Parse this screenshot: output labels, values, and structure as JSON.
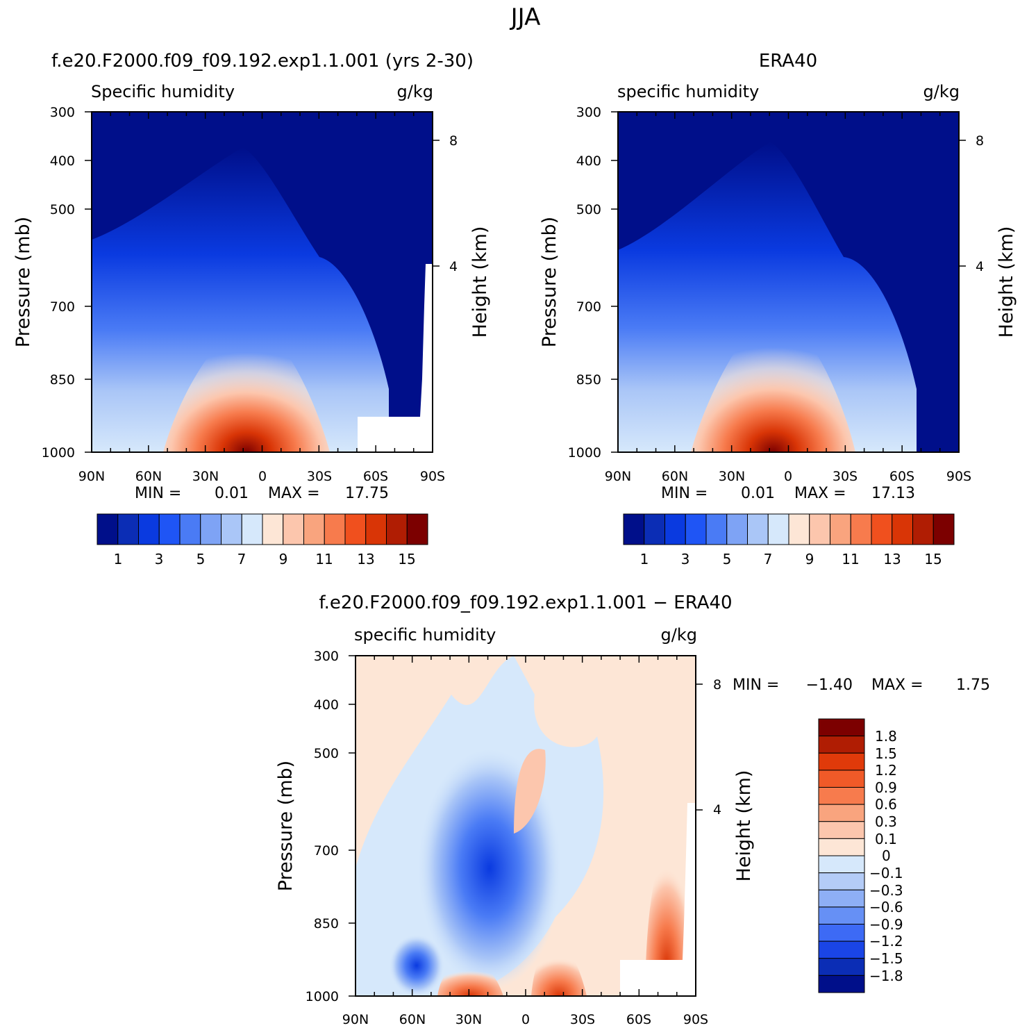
{
  "page_title": "JJA",
  "chart_data": [
    {
      "type": "heatmap",
      "panel_title": "f.e20.F2000.f09_f09.192.exp1.1.001 (yrs 2-30)",
      "left_label": "Specific humidity",
      "right_label": "g/kg",
      "xlabel": "",
      "ylabel": "Pressure (mb)",
      "y2label": "Height (km)",
      "x_ticks": [
        "90N",
        "60N",
        "30N",
        "0",
        "30S",
        "60S",
        "90S"
      ],
      "y_ticks": [
        "300",
        "400",
        "500",
        "700",
        "850",
        "1000"
      ],
      "y2_ticks": [
        "8",
        "4"
      ],
      "stats": {
        "min_label": "MIN =",
        "min": "0.01",
        "max_label": "MAX =",
        "max": "17.75"
      },
      "colorbar_labels": [
        "1",
        "3",
        "5",
        "7",
        "9",
        "11",
        "13",
        "15"
      ],
      "note": "zonal-mean humidity decreasing with height; maximum near the surface just north of the equator"
    },
    {
      "type": "heatmap",
      "panel_title": "ERA40",
      "left_label": "specific humidity",
      "right_label": "g/kg",
      "xlabel": "",
      "ylabel": "Pressure (mb)",
      "y2label": "Height (km)",
      "x_ticks": [
        "90N",
        "60N",
        "30N",
        "0",
        "30S",
        "60S",
        "90S"
      ],
      "y_ticks": [
        "300",
        "400",
        "500",
        "700",
        "850",
        "1000"
      ],
      "y2_ticks": [
        "8",
        "4"
      ],
      "stats": {
        "min_label": "MIN =",
        "min": "0.01",
        "max_label": "MAX =",
        "max": "17.13"
      },
      "colorbar_labels": [
        "1",
        "3",
        "5",
        "7",
        "9",
        "11",
        "13",
        "15"
      ]
    },
    {
      "type": "heatmap",
      "panel_title": "f.e20.F2000.f09_f09.192.exp1.1.001 − ERA40",
      "left_label": "specific humidity",
      "right_label": "g/kg",
      "xlabel": "",
      "ylabel": "Pressure (mb)",
      "y2label": "Height (km)",
      "x_ticks": [
        "90N",
        "60N",
        "30N",
        "0",
        "30S",
        "60S",
        "90S"
      ],
      "y_ticks": [
        "300",
        "400",
        "500",
        "700",
        "850",
        "1000"
      ],
      "y2_ticks": [
        "8",
        "4"
      ],
      "stats": {
        "min_label": "MIN =",
        "min": "−1.40",
        "max_label": "MAX =",
        "max": "1.75"
      },
      "colorbar_labels": [
        "1.8",
        "1.5",
        "1.2",
        "0.9",
        "0.6",
        "0.3",
        "0.1",
        "0",
        "−0.1",
        "−0.3",
        "−0.6",
        "−0.9",
        "−1.2",
        "−1.5",
        "−1.8"
      ]
    }
  ],
  "colors": {
    "humidity_scale": [
      "#000f8a",
      "#0b2db5",
      "#0a3ae0",
      "#1f55f5",
      "#4a7bf5",
      "#7ea3f5",
      "#aac6f7",
      "#d6e8fb",
      "#fde6d6",
      "#fcc6ad",
      "#f9a47e",
      "#f77b4d",
      "#f0501e",
      "#d93506",
      "#b01d03",
      "#7c0000"
    ],
    "difference_scale": [
      "#7c0000",
      "#b01d03",
      "#e03a0a",
      "#f05a28",
      "#f77b4d",
      "#f9a47e",
      "#fcc6ad",
      "#fde6d6",
      "#d6e8fb",
      "#b4ccf7",
      "#8eaff5",
      "#6690f5",
      "#3d6af5",
      "#1a45e6",
      "#0b2db5",
      "#000f8a"
    ]
  }
}
